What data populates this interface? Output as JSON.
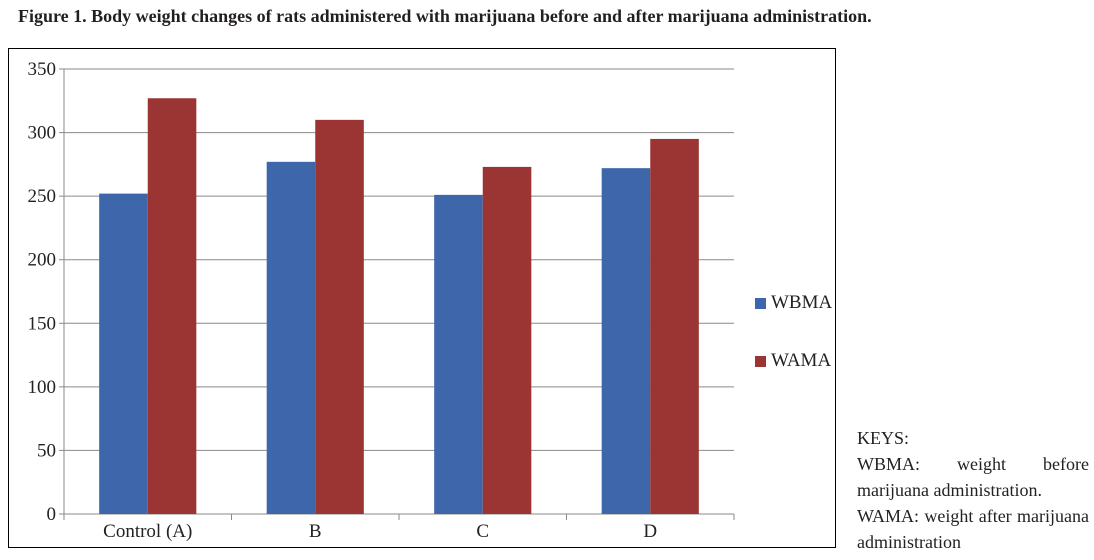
{
  "figure": {
    "title": "Figure 1. Body weight changes of rats administered with marijuana before and after marijuana administration."
  },
  "keys": {
    "title": "KEYS:",
    "entries": [
      "WBMA: weight before marijuana administration.",
      "WAMA: weight after marijuana administration"
    ]
  },
  "chart_data": {
    "type": "bar",
    "title": "",
    "xlabel": "",
    "ylabel": "",
    "categories": [
      "Control (A)",
      "B",
      "C",
      "D"
    ],
    "series": [
      {
        "name": "WBMA",
        "values": [
          252,
          277,
          251,
          272
        ],
        "color": "#3e66ab"
      },
      {
        "name": "WAMA",
        "values": [
          327,
          310,
          273,
          295
        ],
        "color": "#9b3533"
      }
    ],
    "ylim": [
      0,
      350
    ],
    "yticks": [
      0,
      50,
      100,
      150,
      200,
      250,
      300,
      350
    ],
    "grid": true,
    "legend_position": "right"
  }
}
